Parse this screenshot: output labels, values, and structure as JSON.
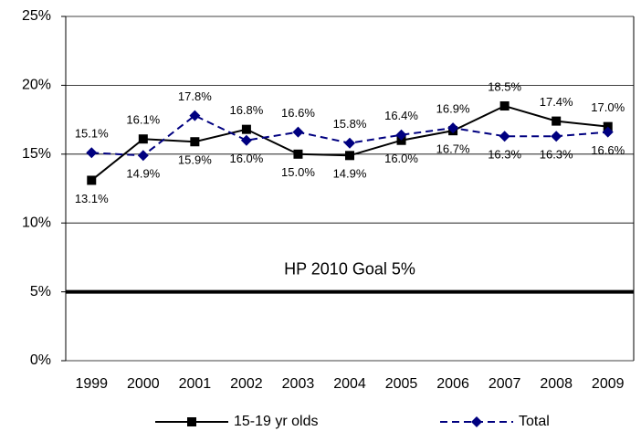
{
  "chart_data": {
    "type": "line",
    "categories": [
      "1999",
      "2000",
      "2001",
      "2002",
      "2003",
      "2004",
      "2005",
      "2006",
      "2007",
      "2008",
      "2009"
    ],
    "series": [
      {
        "name": "15-19 yr olds",
        "color": "#000000",
        "marker": "square",
        "dash": false,
        "values": [
          13.1,
          16.1,
          15.9,
          16.8,
          15.0,
          14.9,
          16.0,
          16.7,
          18.5,
          17.4,
          17.0
        ],
        "value_labels": [
          "13.1%",
          "16.1%",
          "15.9%",
          "16.8%",
          "15.0%",
          "14.9%",
          "16.0%",
          "16.7%",
          "18.5%",
          "17.4%",
          "17.0%"
        ]
      },
      {
        "name": "Total",
        "color": "#000080",
        "marker": "diamond",
        "dash": true,
        "values": [
          15.1,
          14.9,
          17.8,
          16.0,
          16.6,
          15.8,
          16.4,
          16.9,
          16.3,
          16.3,
          16.6
        ],
        "value_labels": [
          "15.1%",
          "14.9%",
          "17.8%",
          "16.0%",
          "16.6%",
          "15.8%",
          "16.4%",
          "16.9%",
          "16.3%",
          "16.3%",
          "16.6%"
        ]
      }
    ],
    "ylim": [
      0,
      25
    ],
    "yticks": [
      {
        "value": 0,
        "label": "0%"
      },
      {
        "value": 5,
        "label": "5%"
      },
      {
        "value": 10,
        "label": "10%"
      },
      {
        "value": 15,
        "label": "15%"
      },
      {
        "value": 20,
        "label": "20%"
      },
      {
        "value": 25,
        "label": "25%"
      }
    ],
    "grid": true,
    "reference_line": {
      "value": 5,
      "label": "HP 2010 Goal 5%"
    },
    "legend": "bottom"
  }
}
